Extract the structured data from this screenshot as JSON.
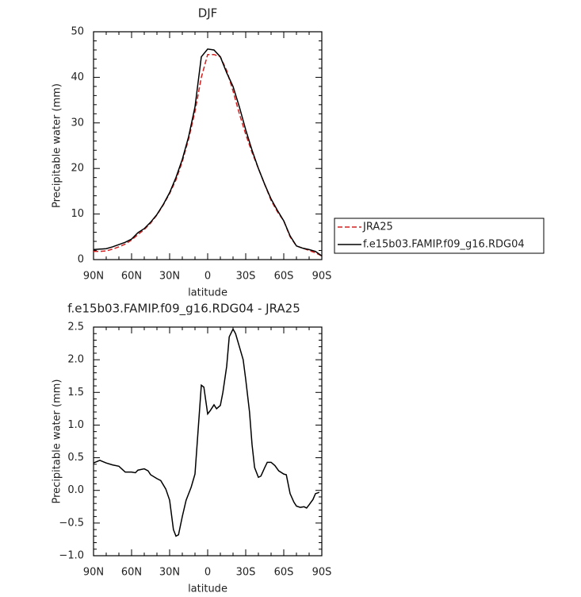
{
  "chart_data": [
    {
      "type": "line",
      "title": "DJF",
      "xlabel": "latitude",
      "ylabel": "Precipitable water (mm)",
      "x": [
        90,
        85,
        80,
        75,
        70,
        65,
        60,
        55,
        50,
        45,
        40,
        35,
        30,
        25,
        20,
        15,
        10,
        5,
        0,
        -5,
        -10,
        -15,
        -20,
        -25,
        -30,
        -35,
        -40,
        -45,
        -50,
        -55,
        -60,
        -65,
        -70,
        -75,
        -80,
        -85,
        -90
      ],
      "series": [
        {
          "name": "JRA25",
          "color": "#d42020",
          "style": "dashed",
          "values": [
            1.8,
            1.8,
            1.9,
            2.3,
            2.8,
            3.4,
            4.3,
            5.5,
            6.6,
            8.0,
            9.8,
            12.0,
            14.5,
            17.5,
            21.5,
            26.5,
            32.5,
            40,
            45,
            45,
            44.5,
            41.5,
            37,
            32,
            27.5,
            23.5,
            20,
            16.5,
            13,
            10.5,
            8.5,
            5,
            3,
            2.5,
            2,
            1.5,
            0.8
          ]
        },
        {
          "name": "f.e15b03.FAMIP.f09_g16.RDG04",
          "color": "#000000",
          "style": "solid",
          "values": [
            2.2,
            2.3,
            2.4,
            2.8,
            3.3,
            3.8,
            4.5,
            5.9,
            6.8,
            8.2,
            9.9,
            12.1,
            14.7,
            18,
            22,
            27,
            33.5,
            44.5,
            46.2,
            46,
            44.5,
            41,
            38,
            33.5,
            28.5,
            24,
            20,
            16.5,
            13.3,
            10.8,
            8.5,
            5.2,
            3,
            2.5,
            2.2,
            1.8,
            0.8
          ]
        }
      ],
      "xlim": [
        90,
        -90
      ],
      "xticks": [
        {
          "value": 90,
          "label": "90N"
        },
        {
          "value": 60,
          "label": "60N"
        },
        {
          "value": 30,
          "label": "30N"
        },
        0,
        {
          "value": -30,
          "label": "30S"
        },
        {
          "value": -60,
          "label": "60S"
        },
        {
          "value": -90,
          "label": "90S"
        }
      ],
      "ylim": [
        0,
        50
      ],
      "yticks": [
        0,
        10,
        20,
        30,
        40,
        50
      ],
      "legend": "outside-right"
    },
    {
      "type": "line",
      "title": "f.e15b03.FAMIP.f09_g16.RDG04 - JRA25",
      "xlabel": "latitude",
      "ylabel": "Precipitable water (mm)",
      "x": [
        90,
        85,
        80,
        75,
        70,
        65,
        60,
        57,
        55,
        50,
        47,
        45,
        40,
        37,
        33,
        30,
        27,
        25,
        23,
        20,
        17,
        13,
        10,
        5,
        3,
        0,
        -2,
        -5,
        -7,
        -10,
        -12,
        -15,
        -17,
        -20,
        -22,
        -25,
        -28,
        -30,
        -33,
        -35,
        -37,
        -40,
        -42,
        -45,
        -47,
        -50,
        -53,
        -56,
        -60,
        -62,
        -65,
        -68,
        -70,
        -73,
        -76,
        -78,
        -80,
        -83,
        -85,
        -88
      ],
      "values": [
        0.42,
        0.46,
        0.42,
        0.39,
        0.37,
        0.28,
        0.28,
        0.27,
        0.31,
        0.33,
        0.3,
        0.24,
        0.18,
        0.15,
        0.02,
        -0.15,
        -0.6,
        -0.7,
        -0.68,
        -0.4,
        -0.15,
        0.05,
        0.25,
        1.61,
        1.58,
        1.17,
        1.22,
        1.31,
        1.25,
        1.3,
        1.5,
        1.9,
        2.35,
        2.47,
        2.4,
        2.2,
        2.0,
        1.7,
        1.2,
        0.7,
        0.35,
        0.2,
        0.22,
        0.35,
        0.43,
        0.43,
        0.38,
        0.3,
        0.25,
        0.24,
        -0.05,
        -0.18,
        -0.24,
        -0.26,
        -0.25,
        -0.27,
        -0.22,
        -0.14,
        -0.05,
        -0.03
      ],
      "color": "#000000",
      "xlim": [
        90,
        -90
      ],
      "xticks": [
        {
          "value": 90,
          "label": "90N"
        },
        {
          "value": 60,
          "label": "60N"
        },
        {
          "value": 30,
          "label": "30N"
        },
        0,
        {
          "value": -30,
          "label": "30S"
        },
        {
          "value": -60,
          "label": "60S"
        },
        {
          "value": -90,
          "label": "90S"
        }
      ],
      "ylim": [
        -1.0,
        2.5
      ],
      "yticks": [
        {
          "value": -1.0,
          "label": "−1.0"
        },
        {
          "value": -0.5,
          "label": "−0.5"
        },
        {
          "value": 0,
          "label": "0.0"
        },
        {
          "value": 0.5,
          "label": "0.5"
        },
        {
          "value": 1.0,
          "label": "1.0"
        },
        {
          "value": 1.5,
          "label": "1.5"
        },
        {
          "value": 2.0,
          "label": "2.0"
        },
        {
          "value": 2.5,
          "label": "2.5"
        }
      ]
    }
  ]
}
